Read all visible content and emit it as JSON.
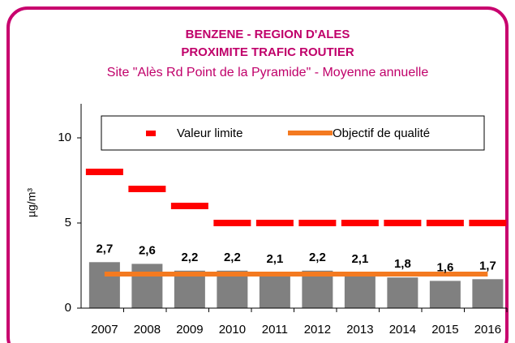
{
  "chart_data": {
    "type": "bar",
    "title": [
      "BENZENE  - REGION D'ALES",
      "PROXIMITE TRAFIC  ROUTIER"
    ],
    "subtitle": "Site \"Alès Rd Point de la Pyramide\" - Moyenne annuelle",
    "y_label": "µg/m³",
    "categories": [
      "2007",
      "2008",
      "2009",
      "2010",
      "2011",
      "2012",
      "2013",
      "2014",
      "2015",
      "2016"
    ],
    "values": [
      2.7,
      2.6,
      2.2,
      2.2,
      2.1,
      2.2,
      2.1,
      1.8,
      1.6,
      1.7
    ],
    "value_labels": [
      "2,7",
      "2,6",
      "2,2",
      "2,2",
      "2,1",
      "2,2",
      "2,1",
      "1,8",
      "1,6",
      "1,7"
    ],
    "color": "#808080",
    "series": [
      {
        "name": "Valeur limite",
        "color": "#ff0000",
        "style": "dash",
        "values": [
          8,
          7,
          6,
          5,
          5,
          5,
          5,
          5,
          5,
          5
        ]
      },
      {
        "name": "Objectif de qualité",
        "color": "#f47a20",
        "style": "line",
        "values": [
          2,
          2,
          2,
          2,
          2,
          2,
          2,
          2,
          2,
          2
        ]
      }
    ],
    "ylim": [
      0,
      12
    ],
    "yticks": [
      0,
      5,
      10
    ],
    "grid": false
  }
}
